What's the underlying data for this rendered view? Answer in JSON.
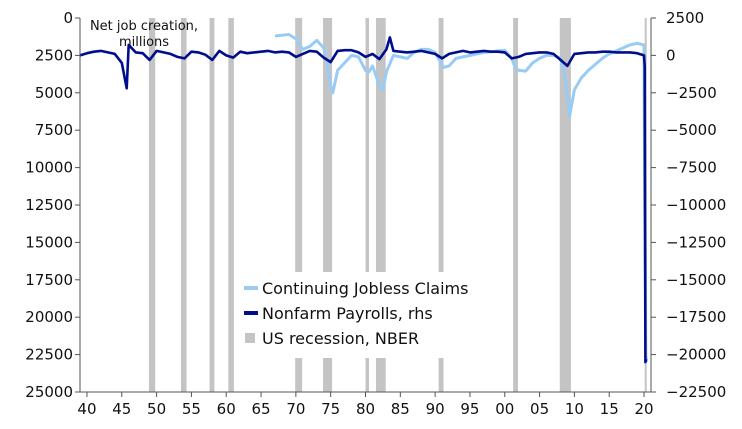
{
  "chart_data": {
    "type": "line",
    "annotation": [
      "Net job creation,",
      "millions"
    ],
    "x_axis": {
      "range": [
        1939,
        2021
      ],
      "tick_values": [
        1940,
        1945,
        1950,
        1955,
        1960,
        1965,
        1970,
        1975,
        1980,
        1985,
        1990,
        1995,
        2000,
        2005,
        2010,
        2015,
        2020
      ],
      "tick_labels": [
        "40",
        "45",
        "50",
        "55",
        "60",
        "65",
        "70",
        "75",
        "80",
        "85",
        "90",
        "95",
        "00",
        "05",
        "10",
        "15",
        "20"
      ]
    },
    "left_axis": {
      "inverted": true,
      "range": [
        0,
        25000
      ],
      "ticks": [
        0,
        2500,
        5000,
        7500,
        10000,
        12500,
        15000,
        17500,
        20000,
        22500,
        25000
      ]
    },
    "right_axis": {
      "range": [
        2500,
        -22500
      ],
      "ticks": [
        2500,
        0,
        -2500,
        -5000,
        -7500,
        -10000,
        -12500,
        -15000,
        -17500,
        -20000,
        -22500
      ],
      "tick_labels": [
        "2500",
        "0",
        "−2500",
        "−5000",
        "−7500",
        "−10000",
        "−12500",
        "−15000",
        "−17500",
        "−20000",
        "−22500"
      ]
    },
    "series": [
      {
        "name": "Continuing Jobless Claims",
        "axis": "left",
        "color": "#99ccf5",
        "x": [
          1967.0,
          1969.0,
          1970.0,
          1971.0,
          1972.0,
          1973.0,
          1974.0,
          1974.5,
          1975.0,
          1975.3,
          1976.0,
          1977.0,
          1978.0,
          1979.0,
          1980.0,
          1980.5,
          1981.0,
          1982.0,
          1982.5,
          1983.0,
          1984.0,
          1985.0,
          1986.0,
          1987.0,
          1988.0,
          1989.0,
          1990.0,
          1990.7,
          1991.2,
          1992.0,
          1993.0,
          1994.0,
          1995.0,
          1996.0,
          1997.0,
          1998.0,
          1999.0,
          2000.0,
          2001.0,
          2001.5,
          2002.0,
          2003.0,
          2004.0,
          2005.0,
          2006.0,
          2007.0,
          2008.0,
          2008.5,
          2009.0,
          2009.3,
          2010.0,
          2011.0,
          2012.0,
          2013.0,
          2014.0,
          2015.0,
          2016.0,
          2017.0,
          2018.0,
          2019.0,
          2020.0,
          2020.1,
          2020.2,
          2020.25,
          2020.35
        ],
        "values": [
          1200,
          1100,
          1400,
          2100,
          1900,
          1500,
          2000,
          3000,
          4500,
          5000,
          3500,
          3000,
          2500,
          2600,
          3500,
          3600,
          3200,
          4500,
          4800,
          3600,
          2500,
          2600,
          2700,
          2300,
          2100,
          2100,
          2300,
          2900,
          3300,
          3200,
          2700,
          2600,
          2500,
          2400,
          2300,
          2250,
          2200,
          2150,
          2700,
          3300,
          3500,
          3550,
          3000,
          2700,
          2500,
          2500,
          2700,
          3600,
          5000,
          6600,
          4800,
          4000,
          3500,
          3100,
          2700,
          2400,
          2200,
          2000,
          1800,
          1700,
          1800,
          12000,
          18000,
          22500,
          23000
        ]
      },
      {
        "name": "Nonfarm Payrolls, rhs",
        "axis": "right",
        "color": "#000e8c",
        "x": [
          1939.0,
          1940.0,
          1941.0,
          1942.0,
          1943.0,
          1944.0,
          1945.0,
          1945.7,
          1946.0,
          1947.0,
          1948.0,
          1949.0,
          1950.0,
          1951.0,
          1952.0,
          1953.0,
          1954.0,
          1955.0,
          1956.0,
          1957.0,
          1958.0,
          1959.0,
          1960.0,
          1961.0,
          1962.0,
          1963.0,
          1964.0,
          1965.0,
          1966.0,
          1967.0,
          1968.0,
          1969.0,
          1970.0,
          1971.0,
          1972.0,
          1973.0,
          1974.0,
          1975.0,
          1976.0,
          1977.0,
          1978.0,
          1979.0,
          1980.0,
          1981.0,
          1982.0,
          1983.0,
          1983.5,
          1984.0,
          1985.0,
          1986.0,
          1987.0,
          1988.0,
          1989.0,
          1990.0,
          1991.0,
          1992.0,
          1993.0,
          1994.0,
          1995.0,
          1996.0,
          1997.0,
          1998.0,
          1999.0,
          2000.0,
          2001.0,
          2002.0,
          2003.0,
          2004.0,
          2005.0,
          2006.0,
          2007.0,
          2008.0,
          2009.0,
          2010.0,
          2011.0,
          2012.0,
          2013.0,
          2014.0,
          2015.0,
          2016.0,
          2017.0,
          2018.0,
          2019.0,
          2020.0,
          2020.1,
          2020.2,
          2020.3
        ],
        "values": [
          0,
          150,
          250,
          300,
          200,
          100,
          -500,
          -2200,
          700,
          200,
          150,
          -300,
          300,
          200,
          100,
          -100,
          -200,
          250,
          200,
          50,
          -300,
          300,
          0,
          -150,
          250,
          150,
          200,
          250,
          300,
          200,
          250,
          200,
          -100,
          100,
          300,
          250,
          -150,
          -450,
          300,
          350,
          350,
          200,
          -100,
          100,
          -250,
          400,
          1200,
          300,
          250,
          200,
          250,
          300,
          200,
          100,
          -200,
          100,
          200,
          300,
          200,
          250,
          300,
          250,
          250,
          200,
          -200,
          -100,
          100,
          150,
          200,
          200,
          100,
          -300,
          -700,
          100,
          150,
          200,
          200,
          250,
          250,
          200,
          200,
          200,
          150,
          0,
          -700,
          -20500,
          -20300
        ]
      }
    ],
    "recessions": [
      [
        1948.9,
        1949.8
      ],
      [
        1953.5,
        1954.3
      ],
      [
        1957.6,
        1958.3
      ],
      [
        1960.3,
        1961.1
      ],
      [
        1969.9,
        1970.9
      ],
      [
        1973.9,
        1975.2
      ],
      [
        1980.0,
        1980.5
      ],
      [
        1981.5,
        1982.9
      ],
      [
        1990.5,
        1991.2
      ],
      [
        2001.2,
        2001.9
      ],
      [
        2007.9,
        2009.5
      ],
      [
        2020.1,
        2020.3
      ]
    ],
    "legend": {
      "placement": "lower-center",
      "items": [
        {
          "label": "Continuing Jobless Claims",
          "color": "#99ccf5",
          "kind": "line"
        },
        {
          "label": "Nonfarm Payrolls, rhs",
          "color": "#000e8c",
          "kind": "line"
        },
        {
          "label": "US recession, NBER",
          "color": "#c4c4c4",
          "kind": "square"
        }
      ]
    },
    "recession_color": "#c4c4c4"
  }
}
